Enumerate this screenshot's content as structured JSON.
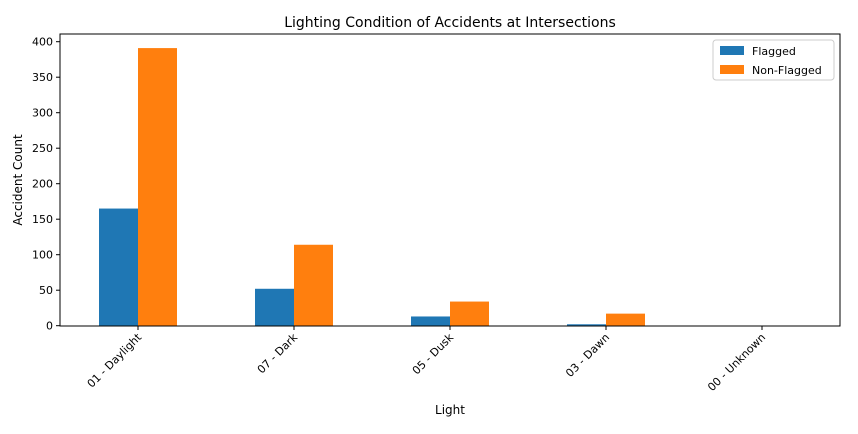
{
  "chart_data": {
    "type": "bar",
    "title": "Lighting Condition of Accidents at Intersections",
    "xlabel": "Light",
    "ylabel": "Accident Count",
    "categories": [
      "01 - Daylight",
      "07 - Dark",
      "05 - Dusk",
      "03 - Dawn",
      "00 - Unknown"
    ],
    "series": [
      {
        "name": "Flagged",
        "values": [
          165,
          52,
          13,
          2,
          0
        ],
        "color": "#1f77b4"
      },
      {
        "name": "Non-Flagged",
        "values": [
          391,
          114,
          34,
          17,
          0
        ],
        "color": "#ff7f0e"
      }
    ],
    "ylim": [
      0,
      410
    ],
    "yticks": [
      0,
      50,
      100,
      150,
      200,
      250,
      300,
      350,
      400
    ],
    "grid": false,
    "legend": "top-right"
  }
}
